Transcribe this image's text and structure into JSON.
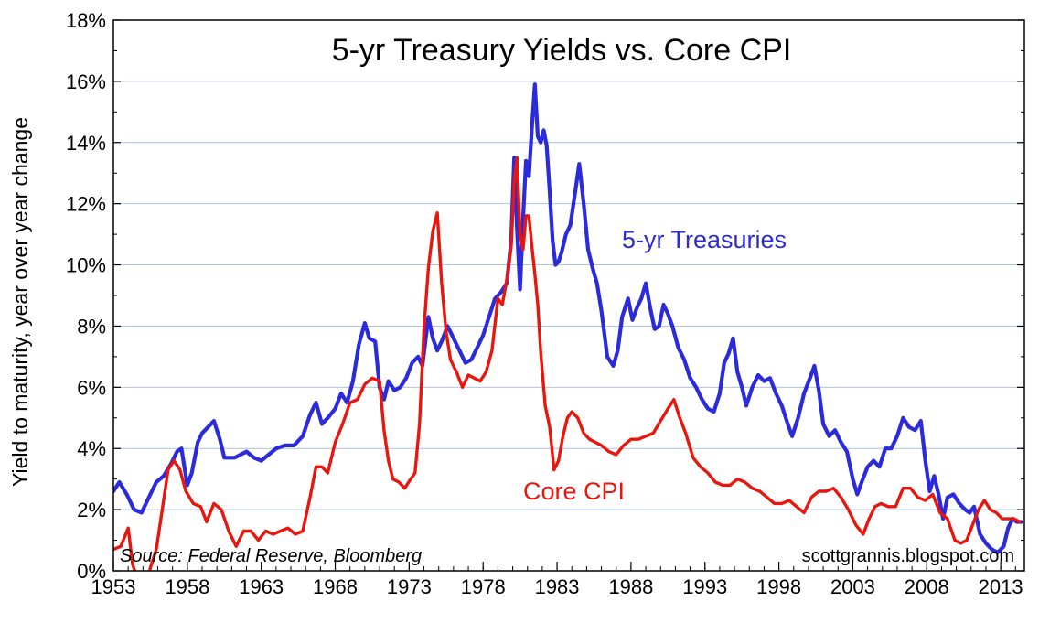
{
  "chart_data": {
    "type": "line",
    "title": "5-yr Treasury Yields vs. Core CPI",
    "ylabel": "Yield to maturity, year over year change",
    "xlabel": "",
    "xlim": [
      1953,
      2014.6
    ],
    "ylim": [
      0,
      18
    ],
    "x_ticks": [
      1953,
      1958,
      1963,
      1968,
      1973,
      1978,
      1983,
      1988,
      1993,
      1998,
      2003,
      2008,
      2013
    ],
    "x_tick_labels": [
      "1953",
      "1958",
      "1963",
      "1968",
      "1973",
      "1978",
      "1983",
      "1988",
      "1993",
      "1998",
      "2003",
      "2008",
      "2013"
    ],
    "y_ticks": [
      0,
      2,
      4,
      6,
      8,
      10,
      12,
      14,
      16,
      18
    ],
    "y_tick_labels": [
      "0%",
      "2%",
      "4%",
      "6%",
      "8%",
      "10%",
      "12%",
      "14%",
      "16%",
      "18%"
    ],
    "grid": {
      "horizontal": true,
      "vertical": false
    },
    "source_note": "Source: Federal Reserve, Bloomberg",
    "credit": "scottgrannis.blogspot.com",
    "series": [
      {
        "name": "5-yr Treasuries",
        "color": "#2b2bdc",
        "x": [
          1953.0,
          1953.4,
          1953.9,
          1954.4,
          1954.9,
          1955.4,
          1955.9,
          1956.4,
          1956.9,
          1957.3,
          1957.6,
          1958.0,
          1958.3,
          1958.7,
          1959.0,
          1959.4,
          1959.8,
          1960.2,
          1960.5,
          1960.8,
          1961.2,
          1961.6,
          1962.0,
          1962.5,
          1963.0,
          1963.5,
          1964.0,
          1964.6,
          1965.2,
          1965.8,
          1966.3,
          1966.7,
          1967.1,
          1967.5,
          1968.0,
          1968.4,
          1968.8,
          1969.2,
          1969.6,
          1970.0,
          1970.3,
          1970.7,
          1971.0,
          1971.3,
          1971.6,
          1972.0,
          1972.4,
          1972.8,
          1973.2,
          1973.6,
          1973.9,
          1974.3,
          1974.6,
          1974.9,
          1975.2,
          1975.6,
          1976.0,
          1976.4,
          1976.8,
          1977.2,
          1977.6,
          1978.0,
          1978.4,
          1978.8,
          1979.2,
          1979.6,
          1979.9,
          1980.1,
          1980.3,
          1980.5,
          1980.7,
          1980.9,
          1981.1,
          1981.3,
          1981.5,
          1981.7,
          1981.9,
          1982.1,
          1982.3,
          1982.5,
          1982.7,
          1982.9,
          1983.1,
          1983.3,
          1983.6,
          1983.9,
          1984.2,
          1984.5,
          1984.8,
          1985.1,
          1985.4,
          1985.7,
          1986.0,
          1986.4,
          1986.8,
          1987.1,
          1987.4,
          1987.8,
          1988.1,
          1988.4,
          1988.7,
          1989.0,
          1989.3,
          1989.6,
          1989.9,
          1990.2,
          1990.5,
          1990.8,
          1991.2,
          1991.6,
          1992.0,
          1992.4,
          1992.8,
          1993.2,
          1993.6,
          1994.0,
          1994.3,
          1994.6,
          1994.9,
          1995.2,
          1995.5,
          1995.8,
          1996.2,
          1996.6,
          1997.0,
          1997.4,
          1997.8,
          1998.2,
          1998.6,
          1998.9,
          1999.3,
          1999.7,
          2000.1,
          2000.4,
          2000.7,
          2001.0,
          2001.4,
          2001.8,
          2002.2,
          2002.6,
          2003.0,
          2003.3,
          2003.6,
          2004.0,
          2004.4,
          2004.8,
          2005.2,
          2005.6,
          2006.0,
          2006.4,
          2006.8,
          2007.2,
          2007.6,
          2007.9,
          2008.2,
          2008.5,
          2008.8,
          2009.1,
          2009.4,
          2009.8,
          2010.2,
          2010.6,
          2010.9,
          2011.2,
          2011.6,
          2012.0,
          2012.4,
          2012.8,
          2013.2,
          2013.5,
          2013.8,
          2014.1,
          2014.4
        ],
        "values": [
          2.6,
          2.9,
          2.5,
          2.0,
          1.9,
          2.4,
          2.9,
          3.1,
          3.5,
          3.9,
          4.0,
          2.8,
          3.2,
          4.2,
          4.5,
          4.7,
          4.9,
          4.3,
          3.7,
          3.7,
          3.7,
          3.8,
          3.9,
          3.7,
          3.6,
          3.8,
          4.0,
          4.1,
          4.1,
          4.4,
          5.1,
          5.5,
          4.8,
          5.0,
          5.3,
          5.8,
          5.5,
          6.2,
          7.4,
          8.1,
          7.6,
          7.5,
          6.0,
          5.6,
          6.2,
          5.9,
          6.0,
          6.3,
          6.8,
          7.0,
          6.7,
          8.3,
          7.6,
          7.2,
          7.5,
          8.0,
          7.6,
          7.2,
          6.8,
          6.9,
          7.3,
          7.7,
          8.3,
          8.9,
          9.1,
          9.4,
          10.8,
          13.5,
          11.1,
          9.2,
          11.5,
          13.4,
          12.9,
          14.5,
          15.9,
          14.2,
          14.0,
          14.4,
          13.9,
          12.4,
          10.8,
          10.0,
          10.1,
          10.4,
          11.0,
          11.3,
          12.3,
          13.3,
          12.0,
          10.5,
          9.9,
          9.4,
          8.5,
          7.0,
          6.7,
          7.2,
          8.3,
          8.9,
          8.2,
          8.6,
          8.9,
          9.4,
          8.6,
          7.9,
          8.0,
          8.7,
          8.4,
          8.0,
          7.3,
          6.9,
          6.3,
          6.0,
          5.6,
          5.3,
          5.2,
          5.8,
          6.8,
          7.1,
          7.6,
          6.5,
          6.0,
          5.4,
          6.0,
          6.4,
          6.2,
          6.3,
          5.8,
          5.4,
          4.8,
          4.4,
          5.0,
          5.8,
          6.3,
          6.7,
          5.9,
          4.8,
          4.4,
          4.6,
          4.2,
          3.9,
          3.0,
          2.5,
          2.9,
          3.4,
          3.6,
          3.4,
          4.0,
          4.0,
          4.4,
          5.0,
          4.7,
          4.6,
          4.9,
          3.6,
          2.6,
          3.1,
          2.5,
          1.7,
          2.4,
          2.5,
          2.2,
          2.0,
          1.9,
          2.1,
          1.2,
          0.9,
          0.7,
          0.6,
          0.8,
          1.4,
          1.7,
          1.6,
          1.6
        ]
      },
      {
        "name": "Core CPI",
        "color": "#e8160c",
        "x": [
          1953.0,
          1953.5,
          1954.0,
          1954.3,
          1954.6,
          1954.9,
          1955.2,
          1955.5,
          1955.9,
          1956.3,
          1956.7,
          1957.1,
          1957.5,
          1957.9,
          1958.4,
          1958.9,
          1959.3,
          1959.8,
          1960.3,
          1960.8,
          1961.3,
          1961.8,
          1962.3,
          1962.8,
          1963.3,
          1963.8,
          1964.3,
          1964.8,
          1965.3,
          1965.8,
          1966.3,
          1966.7,
          1967.1,
          1967.5,
          1968.0,
          1968.5,
          1969.0,
          1969.5,
          1970.0,
          1970.5,
          1971.0,
          1971.3,
          1971.6,
          1971.9,
          1972.3,
          1972.7,
          1973.1,
          1973.4,
          1973.7,
          1974.0,
          1974.3,
          1974.6,
          1974.9,
          1975.2,
          1975.5,
          1975.8,
          1976.2,
          1976.6,
          1977.0,
          1977.4,
          1977.8,
          1978.2,
          1978.6,
          1979.0,
          1979.3,
          1979.6,
          1979.9,
          1980.1,
          1980.3,
          1980.5,
          1980.7,
          1980.9,
          1981.1,
          1981.3,
          1981.5,
          1981.7,
          1981.9,
          1982.2,
          1982.5,
          1982.8,
          1983.1,
          1983.4,
          1983.7,
          1984.0,
          1984.4,
          1984.8,
          1985.2,
          1985.6,
          1986.0,
          1986.5,
          1987.0,
          1987.5,
          1988.0,
          1988.5,
          1989.0,
          1989.5,
          1990.0,
          1990.5,
          1990.9,
          1991.3,
          1991.7,
          1992.2,
          1992.7,
          1993.2,
          1993.7,
          1994.2,
          1994.7,
          1995.2,
          1995.7,
          1996.2,
          1996.7,
          1997.2,
          1997.7,
          1998.2,
          1998.7,
          1999.2,
          1999.7,
          2000.2,
          2000.7,
          2001.2,
          2001.7,
          2002.2,
          2002.7,
          2003.2,
          2003.7,
          2004.1,
          2004.5,
          2004.9,
          2005.4,
          2005.9,
          2006.4,
          2006.9,
          2007.4,
          2007.9,
          2008.4,
          2008.9,
          2009.4,
          2009.9,
          2010.3,
          2010.7,
          2011.1,
          2011.5,
          2011.9,
          2012.3,
          2012.7,
          2013.1,
          2013.5,
          2013.9,
          2014.3
        ],
        "values": [
          0.7,
          0.8,
          1.4,
          0.2,
          -0.2,
          -0.6,
          -0.7,
          0.1,
          0.7,
          2.0,
          3.3,
          3.6,
          3.3,
          2.6,
          2.2,
          2.1,
          1.6,
          2.2,
          2.0,
          1.3,
          0.8,
          1.3,
          1.3,
          1.0,
          1.3,
          1.2,
          1.3,
          1.4,
          1.2,
          1.3,
          2.4,
          3.4,
          3.4,
          3.2,
          4.2,
          4.8,
          5.5,
          5.6,
          6.1,
          6.3,
          6.2,
          4.6,
          3.6,
          3.0,
          2.9,
          2.7,
          3.0,
          3.2,
          4.8,
          7.9,
          9.9,
          11.1,
          11.7,
          9.4,
          7.8,
          6.9,
          6.5,
          6.0,
          6.4,
          6.3,
          6.2,
          6.5,
          7.2,
          8.9,
          8.7,
          9.5,
          10.6,
          12.7,
          13.5,
          11.0,
          10.5,
          11.6,
          11.6,
          10.6,
          9.7,
          8.7,
          7.1,
          5.4,
          4.7,
          3.3,
          3.6,
          4.4,
          5.0,
          5.2,
          5.0,
          4.5,
          4.3,
          4.2,
          4.1,
          3.9,
          3.8,
          4.1,
          4.3,
          4.3,
          4.4,
          4.5,
          4.9,
          5.3,
          5.6,
          5.0,
          4.5,
          3.7,
          3.4,
          3.2,
          2.9,
          2.8,
          2.8,
          3.0,
          2.9,
          2.7,
          2.6,
          2.4,
          2.2,
          2.2,
          2.3,
          2.1,
          1.9,
          2.4,
          2.6,
          2.6,
          2.7,
          2.4,
          2.0,
          1.5,
          1.2,
          1.7,
          2.1,
          2.2,
          2.1,
          2.1,
          2.7,
          2.7,
          2.4,
          2.3,
          2.5,
          1.9,
          1.7,
          1.0,
          0.9,
          1.0,
          1.5,
          2.0,
          2.3,
          2.0,
          1.9,
          1.7,
          1.7,
          1.7,
          1.6
        ]
      }
    ]
  }
}
